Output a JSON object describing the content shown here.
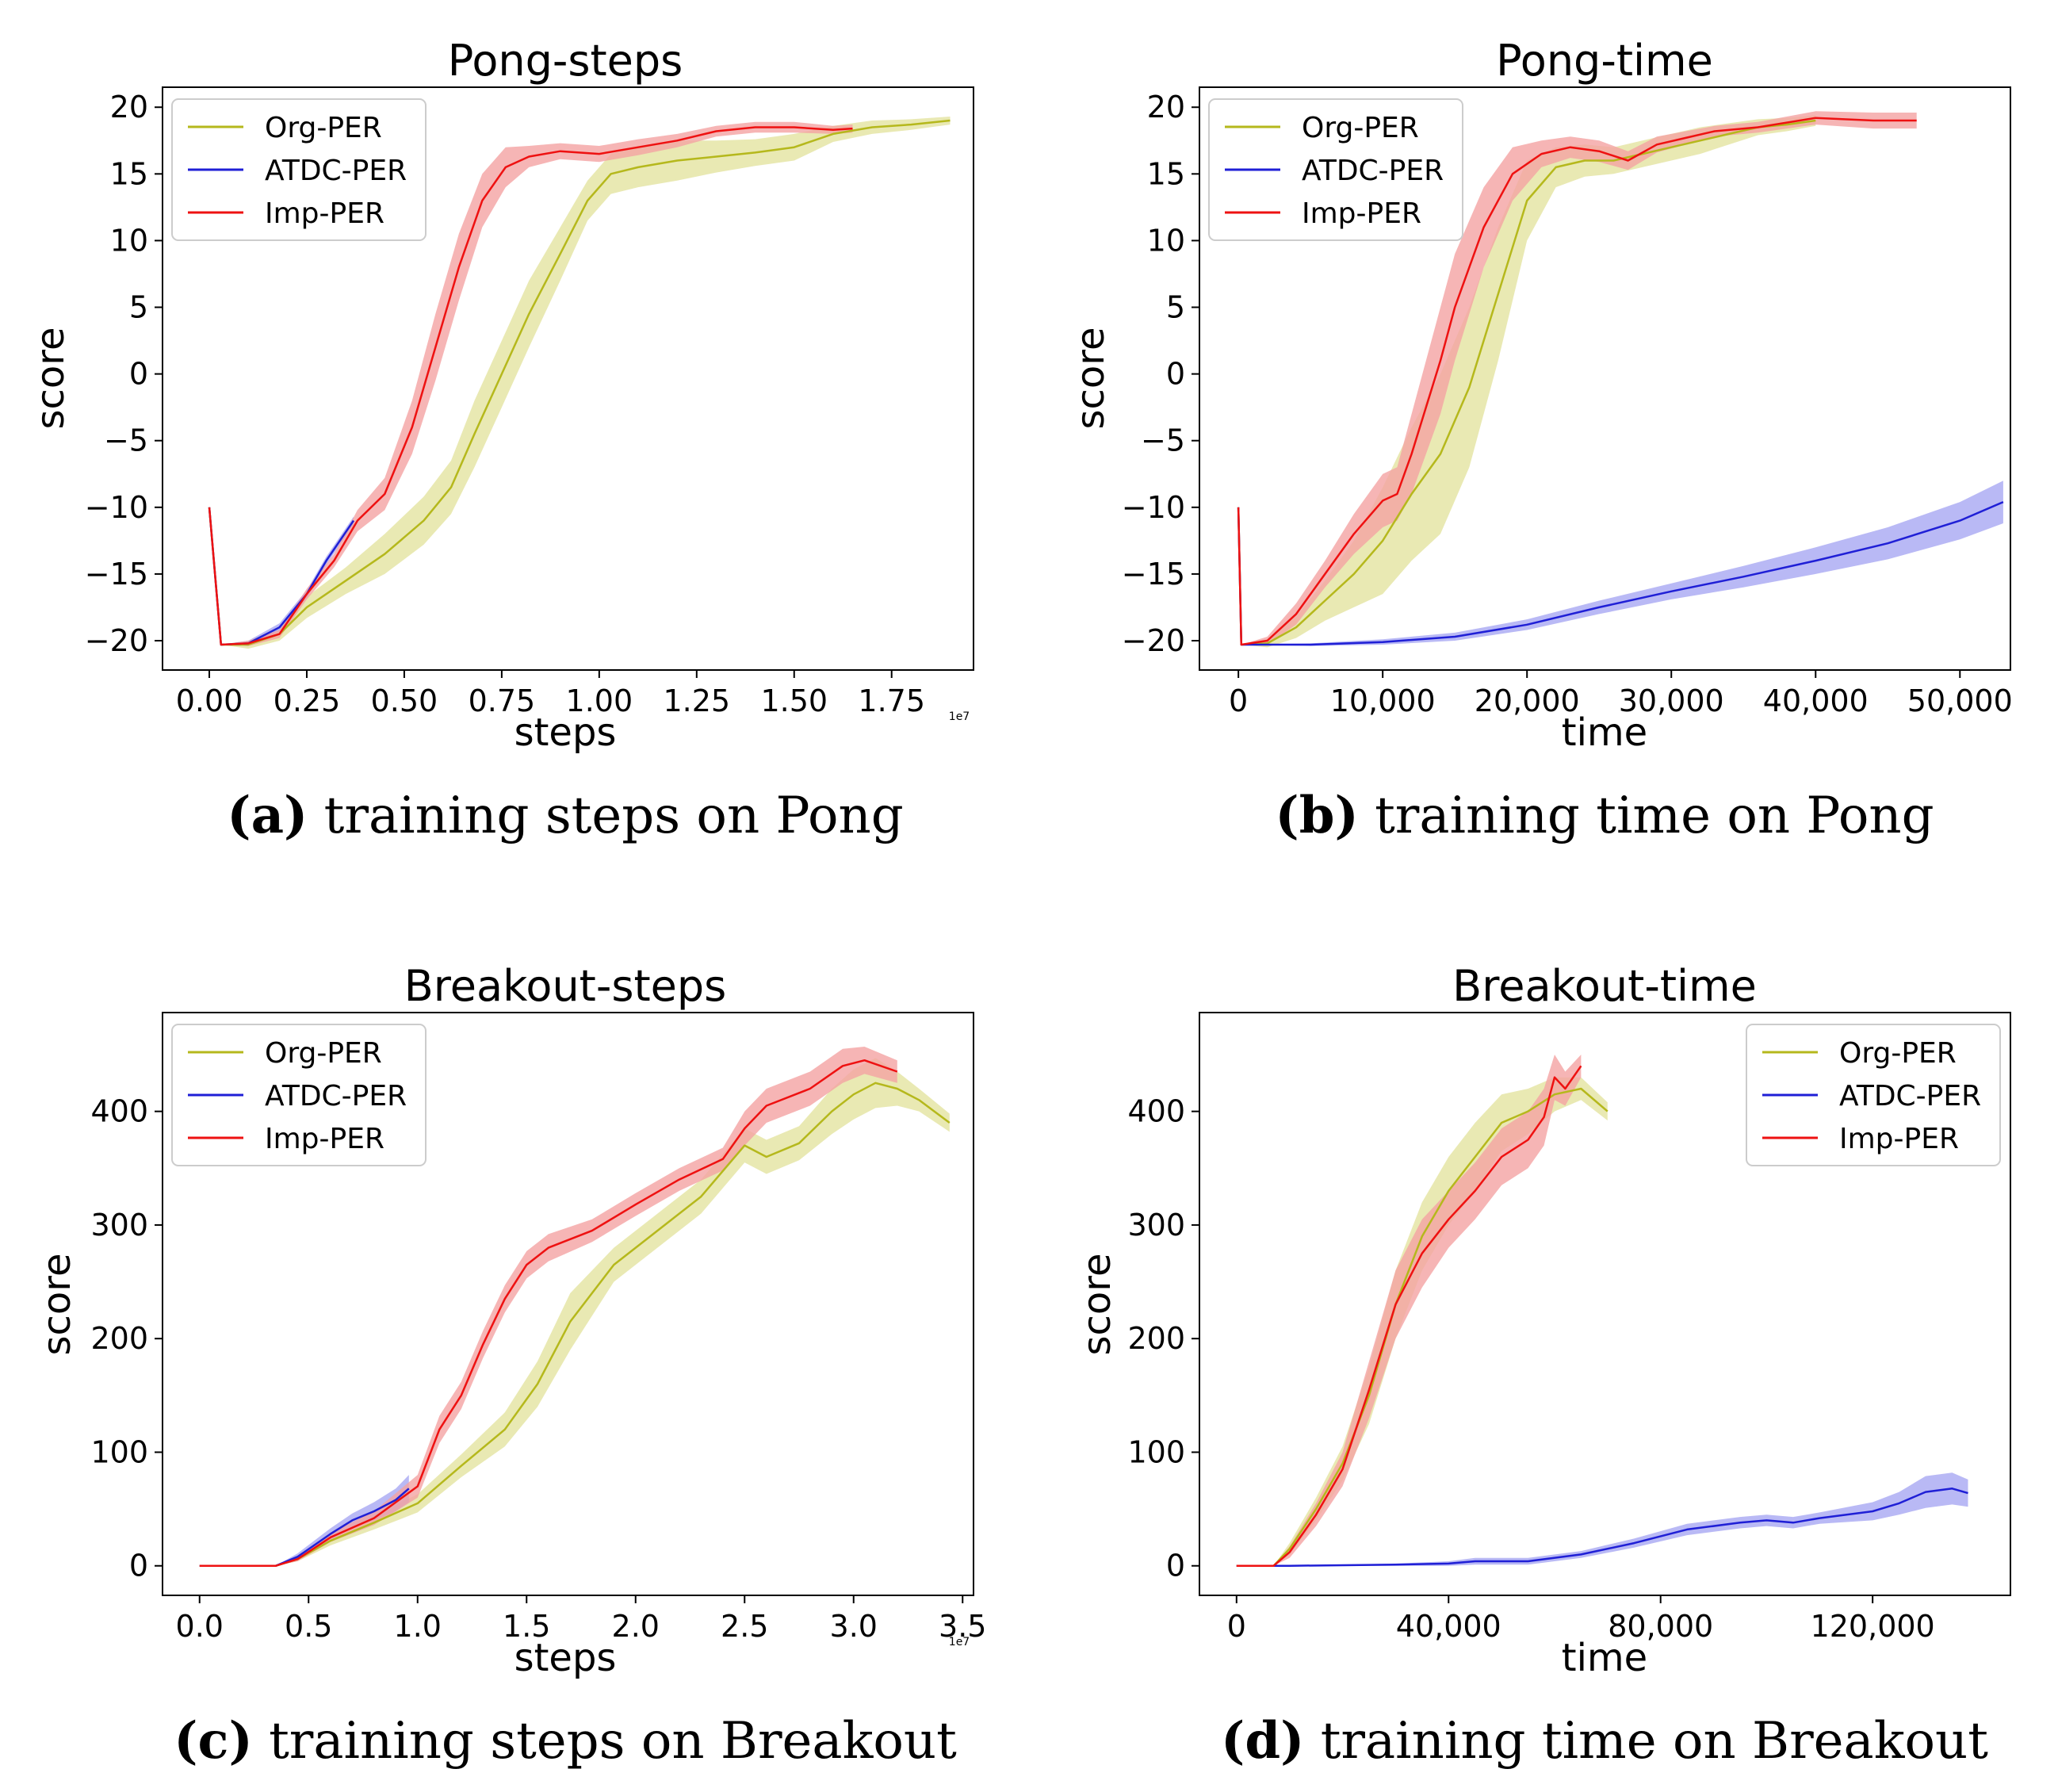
{
  "colors": {
    "org": "#b5b81c",
    "org_band": "#e3e3a0",
    "atdc": "#1f1fd6",
    "atdc_band": "#a8a8f2",
    "imp": "#ee1111",
    "imp_band": "#f4a3a3"
  },
  "legend": {
    "org": "Org-PER",
    "atdc": "ATDC-PER",
    "imp": "Imp-PER"
  },
  "chart_data": [
    {
      "id": "a",
      "type": "line",
      "title": "Pong-steps",
      "xlabel": "steps",
      "ylabel": "score",
      "xlim": [
        -0.12,
        1.96
      ],
      "ylim": [
        -22.2,
        21.5
      ],
      "xticks": [
        0,
        0.25,
        0.5,
        0.75,
        1.0,
        1.25,
        1.5,
        1.75
      ],
      "xtick_labels": [
        "0.00",
        "0.25",
        "0.50",
        "0.75",
        "1.00",
        "1.25",
        "1.50",
        "1.75"
      ],
      "yticks": [
        -20,
        -15,
        -10,
        -5,
        0,
        5,
        10,
        15,
        20
      ],
      "ytick_labels": [
        "−20",
        "−15",
        "−10",
        "−5",
        "0",
        "5",
        "10",
        "15",
        "20"
      ],
      "x_offset_label": "1e7",
      "legend_position": "top-left",
      "caption_letter": "(a)",
      "caption_text": " training steps on Pong",
      "series": [
        {
          "name": "Org-PER",
          "key": "org",
          "x": [
            0,
            0.03,
            0.1,
            0.18,
            0.25,
            0.35,
            0.45,
            0.55,
            0.62,
            0.68,
            0.75,
            0.82,
            0.9,
            0.97,
            1.03,
            1.1,
            1.2,
            1.3,
            1.4,
            1.5,
            1.6,
            1.7,
            1.8,
            1.9
          ],
          "y": [
            -10,
            -20.3,
            -20.3,
            -19.5,
            -17.5,
            -15.5,
            -13.5,
            -11,
            -8.5,
            -4.5,
            0,
            4.5,
            9,
            13,
            15,
            15.5,
            16,
            16.3,
            16.6,
            17,
            18,
            18.5,
            18.7,
            19
          ],
          "band": [
            0,
            0,
            0.3,
            0.5,
            0.8,
            1,
            1.5,
            1.8,
            2,
            2.5,
            2.5,
            2.5,
            2,
            1.5,
            1.5,
            1.5,
            1.5,
            1.2,
            1,
            1,
            0.6,
            0.5,
            0.4,
            0.3
          ]
        },
        {
          "name": "ATDC-PER",
          "key": "atdc",
          "x": [
            0,
            0.03,
            0.1,
            0.18,
            0.25,
            0.3,
            0.37
          ],
          "y": [
            -10,
            -20.3,
            -20.2,
            -19,
            -16.5,
            -14,
            -11
          ],
          "band": [
            0,
            0,
            0.2,
            0.3,
            0.3,
            0.3,
            0.3
          ]
        },
        {
          "name": "Imp-PER",
          "key": "imp",
          "x": [
            0,
            0.03,
            0.1,
            0.18,
            0.25,
            0.32,
            0.38,
            0.45,
            0.52,
            0.58,
            0.64,
            0.7,
            0.76,
            0.82,
            0.9,
            1.0,
            1.1,
            1.2,
            1.3,
            1.4,
            1.5,
            1.6,
            1.65
          ],
          "y": [
            -10,
            -20.3,
            -20.2,
            -19.5,
            -16.5,
            -14,
            -11,
            -9,
            -4,
            2,
            8,
            13,
            15.5,
            16.3,
            16.7,
            16.5,
            17,
            17.5,
            18.2,
            18.5,
            18.5,
            18.3,
            18.4
          ],
          "band": [
            0,
            0,
            0.2,
            0.3,
            0.4,
            0.5,
            0.8,
            1.2,
            2,
            2.5,
            2.5,
            2,
            1.5,
            0.8,
            0.6,
            0.6,
            0.6,
            0.5,
            0.4,
            0.4,
            0.4,
            0.3,
            0.3
          ]
        }
      ]
    },
    {
      "id": "b",
      "type": "line",
      "title": "Pong-time",
      "xlabel": "time",
      "ylabel": "score",
      "xlim": [
        -2700,
        53500
      ],
      "ylim": [
        -22.2,
        21.5
      ],
      "xticks": [
        0,
        10000,
        20000,
        30000,
        40000,
        50000
      ],
      "xtick_labels": [
        "0",
        "10,000",
        "20,000",
        "30,000",
        "40,000",
        "50,000"
      ],
      "yticks": [
        -20,
        -15,
        -10,
        -5,
        0,
        5,
        10,
        15,
        20
      ],
      "ytick_labels": [
        "−20",
        "−15",
        "−10",
        "−5",
        "0",
        "5",
        "10",
        "15",
        "20"
      ],
      "legend_position": "top-left",
      "caption_letter": "(b)",
      "caption_text": " training time on Pong",
      "series": [
        {
          "name": "Org-PER",
          "key": "org",
          "x": [
            0,
            200,
            2000,
            4000,
            6000,
            8000,
            10000,
            12000,
            14000,
            16000,
            18000,
            20000,
            22000,
            24000,
            26000,
            28000,
            30000,
            32000,
            34000,
            36000,
            38000,
            40000
          ],
          "y": [
            -10,
            -20.3,
            -20.2,
            -19,
            -17,
            -15,
            -12.5,
            -9,
            -6,
            -1,
            6,
            13,
            15.5,
            16,
            16,
            16.5,
            17,
            17.5,
            18,
            18.5,
            18.7,
            19
          ],
          "band": [
            0,
            0,
            0.3,
            0.8,
            1.5,
            2.5,
            4,
            5,
            6,
            6,
            5,
            3,
            1.5,
            1.2,
            1,
            1,
            1,
            1,
            0.8,
            0.6,
            0.5,
            0.4
          ]
        },
        {
          "name": "ATDC-PER",
          "key": "atdc",
          "x": [
            0,
            200,
            5000,
            10000,
            15000,
            20000,
            25000,
            30000,
            35000,
            40000,
            45000,
            50000,
            53000
          ],
          "y": [
            -10,
            -20.3,
            -20.3,
            -20.1,
            -19.7,
            -18.8,
            -17.5,
            -16.3,
            -15.2,
            -14,
            -12.7,
            -11,
            -9.6
          ],
          "band": [
            0,
            0,
            0.1,
            0.2,
            0.3,
            0.4,
            0.5,
            0.6,
            0.8,
            1,
            1.2,
            1.4,
            1.6
          ]
        },
        {
          "name": "Imp-PER",
          "key": "imp",
          "x": [
            0,
            200,
            2000,
            4000,
            6000,
            8000,
            10000,
            11000,
            12000,
            14000,
            15000,
            17000,
            19000,
            21000,
            23000,
            25000,
            27000,
            29000,
            31000,
            33000,
            36000,
            40000,
            44000,
            47000
          ],
          "y": [
            -10,
            -20.3,
            -20,
            -18,
            -15,
            -12,
            -9.5,
            -9,
            -6,
            1,
            5,
            11,
            15,
            16.5,
            17,
            16.7,
            16,
            17.2,
            17.7,
            18.2,
            18.5,
            19.2,
            19,
            19
          ],
          "band": [
            0,
            0,
            0.3,
            0.8,
            1,
            1.5,
            2,
            2,
            3,
            4,
            4,
            3,
            2,
            1,
            0.8,
            0.8,
            0.7,
            0.6,
            0.5,
            0.4,
            0.4,
            0.5,
            0.6,
            0.6
          ]
        }
      ]
    },
    {
      "id": "c",
      "type": "line",
      "title": "Breakout-steps",
      "xlabel": "steps",
      "ylabel": "score",
      "xlim": [
        -0.17,
        3.55
      ],
      "ylim": [
        -26,
        487
      ],
      "xticks": [
        0,
        0.5,
        1.0,
        1.5,
        2.0,
        2.5,
        3.0,
        3.5
      ],
      "xtick_labels": [
        "0.0",
        "0.5",
        "1.0",
        "1.5",
        "2.0",
        "2.5",
        "3.0",
        "3.5"
      ],
      "yticks": [
        0,
        100,
        200,
        300,
        400
      ],
      "ytick_labels": [
        "0",
        "100",
        "200",
        "300",
        "400"
      ],
      "x_offset_label": "1e7",
      "legend_position": "top-left",
      "caption_letter": "(c)",
      "caption_text": " training steps on Breakout",
      "series": [
        {
          "name": "Org-PER",
          "key": "org",
          "x": [
            0,
            0.35,
            0.45,
            0.6,
            0.8,
            1.0,
            1.2,
            1.4,
            1.55,
            1.7,
            1.8,
            1.9,
            2.1,
            2.3,
            2.5,
            2.6,
            2.75,
            2.9,
            3.0,
            3.1,
            3.2,
            3.3,
            3.44
          ],
          "y": [
            0,
            0,
            6,
            22,
            38,
            55,
            88,
            120,
            160,
            215,
            240,
            265,
            295,
            325,
            370,
            360,
            372,
            400,
            415,
            425,
            420,
            410,
            390
          ],
          "band": [
            0,
            0,
            2,
            4,
            6,
            8,
            10,
            15,
            20,
            25,
            20,
            15,
            15,
            15,
            15,
            15,
            15,
            20,
            22,
            22,
            15,
            10,
            8
          ]
        },
        {
          "name": "ATDC-PER",
          "key": "atdc",
          "x": [
            0,
            0.35,
            0.45,
            0.6,
            0.7,
            0.8,
            0.9,
            0.96
          ],
          "y": [
            0,
            0,
            8,
            28,
            40,
            48,
            58,
            68
          ],
          "band": [
            0,
            0,
            3,
            5,
            6,
            8,
            10,
            12
          ]
        },
        {
          "name": "Imp-PER",
          "key": "imp",
          "x": [
            0,
            0.35,
            0.45,
            0.6,
            0.8,
            1.0,
            1.1,
            1.2,
            1.3,
            1.4,
            1.5,
            1.6,
            1.8,
            2.0,
            2.2,
            2.4,
            2.5,
            2.6,
            2.8,
            2.95,
            3.05,
            3.2
          ],
          "y": [
            0,
            0,
            6,
            25,
            42,
            70,
            120,
            150,
            195,
            235,
            265,
            280,
            295,
            318,
            340,
            358,
            385,
            405,
            420,
            440,
            445,
            435
          ],
          "band": [
            0,
            0,
            2,
            4,
            6,
            10,
            12,
            12,
            12,
            12,
            12,
            12,
            10,
            10,
            10,
            10,
            15,
            15,
            15,
            15,
            12,
            10
          ]
        }
      ]
    },
    {
      "id": "d",
      "type": "line",
      "title": "Breakout-time",
      "xlabel": "time",
      "ylabel": "score",
      "xlim": [
        -7000,
        146000
      ],
      "ylim": [
        -26,
        487
      ],
      "xticks": [
        0,
        40000,
        80000,
        120000
      ],
      "xtick_labels": [
        "0",
        "40,000",
        "80,000",
        "120,000"
      ],
      "yticks": [
        0,
        100,
        200,
        300,
        400
      ],
      "ytick_labels": [
        "0",
        "100",
        "200",
        "300",
        "400"
      ],
      "legend_position": "top-right",
      "caption_letter": "(d)",
      "caption_text": " training time on Breakout",
      "series": [
        {
          "name": "Org-PER",
          "key": "org",
          "x": [
            0,
            7000,
            10000,
            15000,
            20000,
            25000,
            30000,
            35000,
            40000,
            45000,
            50000,
            55000,
            60000,
            65000,
            70000
          ],
          "y": [
            0,
            0,
            15,
            50,
            90,
            150,
            230,
            290,
            330,
            360,
            390,
            400,
            415,
            420,
            400
          ],
          "band": [
            0,
            0,
            5,
            10,
            15,
            25,
            30,
            30,
            30,
            30,
            25,
            20,
            15,
            10,
            8
          ]
        },
        {
          "name": "ATDC-PER",
          "key": "atdc",
          "x": [
            0,
            10000,
            30000,
            40000,
            45000,
            50000,
            55000,
            65000,
            75000,
            85000,
            95000,
            100000,
            105000,
            110000,
            120000,
            125000,
            130000,
            135000,
            138000
          ],
          "y": [
            0,
            0,
            1,
            2,
            4,
            4,
            4,
            10,
            20,
            32,
            38,
            40,
            38,
            42,
            48,
            55,
            65,
            68,
            64
          ],
          "band": [
            0,
            0,
            1,
            2,
            3,
            3,
            3,
            3,
            4,
            5,
            5,
            5,
            5,
            5,
            8,
            10,
            14,
            14,
            12
          ]
        },
        {
          "name": "Imp-PER",
          "key": "imp",
          "x": [
            0,
            7000,
            10000,
            15000,
            20000,
            25000,
            30000,
            35000,
            40000,
            45000,
            50000,
            55000,
            58000,
            60000,
            62000,
            65000
          ],
          "y": [
            0,
            0,
            12,
            45,
            85,
            155,
            230,
            275,
            305,
            330,
            360,
            375,
            395,
            430,
            420,
            440
          ],
          "band": [
            0,
            0,
            5,
            10,
            15,
            25,
            30,
            30,
            25,
            25,
            25,
            25,
            25,
            20,
            15,
            10
          ]
        }
      ]
    }
  ]
}
